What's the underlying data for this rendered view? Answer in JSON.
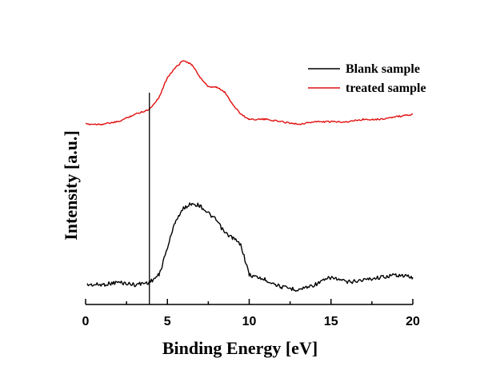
{
  "chart_data": {
    "type": "line",
    "xlabel": "Binding Energy [eV]",
    "ylabel": "Intensity [a.u.]",
    "xlim": [
      0,
      20
    ],
    "x_ticks": [
      "0",
      "5",
      "10",
      "15",
      "20"
    ],
    "y_ticks_labeled": false,
    "grid": false,
    "legend_position": "top-right",
    "vertical_marker_x": 3.9,
    "series": [
      {
        "name": "Blank sample",
        "color": "#000000",
        "x": [
          0.1,
          1,
          2,
          3,
          3.9,
          4.5,
          5,
          5.5,
          6,
          6.5,
          7,
          7.5,
          8,
          8.5,
          9,
          9.5,
          10,
          11,
          12,
          13,
          14,
          15,
          16,
          17,
          18,
          19,
          20
        ],
        "y": [
          0.08,
          0.08,
          0.09,
          0.08,
          0.09,
          0.12,
          0.23,
          0.34,
          0.39,
          0.41,
          0.4,
          0.37,
          0.34,
          0.29,
          0.27,
          0.24,
          0.12,
          0.1,
          0.07,
          0.06,
          0.08,
          0.11,
          0.09,
          0.1,
          0.11,
          0.12,
          0.11
        ]
      },
      {
        "name": "treated sample",
        "color": "#e01010",
        "x": [
          0,
          1,
          2,
          3,
          3.9,
          4.5,
          5,
          5.5,
          6,
          6.5,
          7,
          7.5,
          8,
          8.5,
          9,
          9.5,
          10,
          11,
          12,
          13,
          14,
          15,
          16,
          17,
          18,
          19,
          20
        ],
        "y": [
          0.73,
          0.73,
          0.74,
          0.77,
          0.79,
          0.84,
          0.92,
          0.96,
          0.99,
          0.97,
          0.92,
          0.88,
          0.88,
          0.86,
          0.81,
          0.77,
          0.75,
          0.75,
          0.74,
          0.73,
          0.74,
          0.74,
          0.74,
          0.75,
          0.75,
          0.76,
          0.77
        ]
      }
    ]
  }
}
